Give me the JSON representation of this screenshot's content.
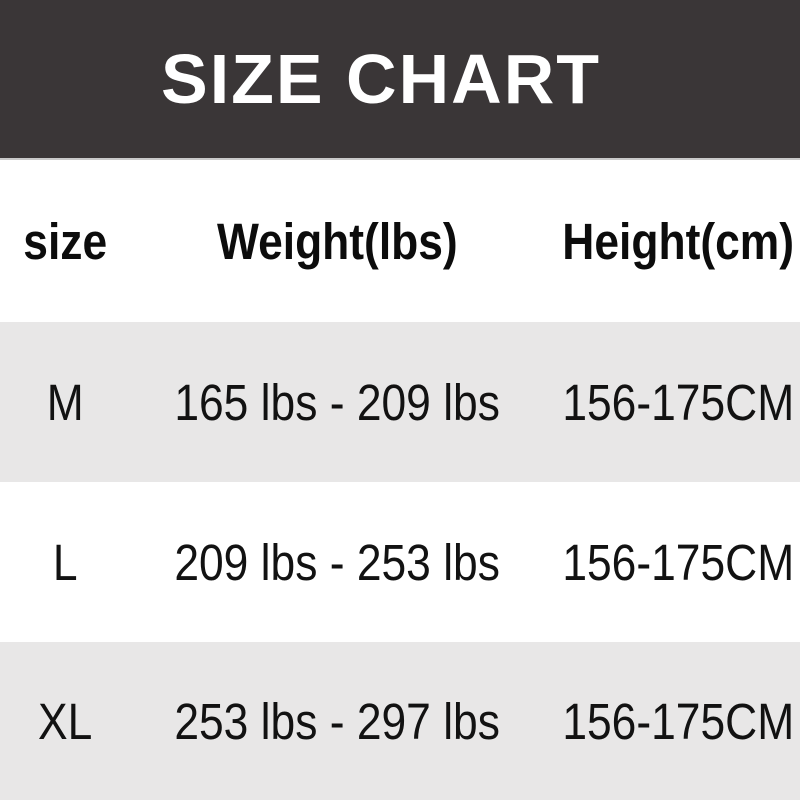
{
  "title": "SIZE CHART",
  "chart_data": {
    "type": "table",
    "title": "SIZE CHART",
    "columns": [
      "size",
      "Weight(lbs)",
      "Height(cm)"
    ],
    "rows": [
      [
        "M",
        "165 lbs - 209 lbs",
        "156-175CM"
      ],
      [
        "L",
        "209 lbs - 253 lbs",
        "156-175CM"
      ],
      [
        "XL",
        "253 lbs - 297 lbs",
        "156-175CM"
      ]
    ],
    "layout": {
      "row_striping": "rows M and XL shaded gray, L white",
      "header_position": "top banner + bold column header row"
    }
  },
  "colors": {
    "banner_bg": "#3a3637",
    "banner_text": "#ffffff",
    "stripe_bg": "#e8e7e7",
    "divider": "#c9c9c9",
    "text": "#121212"
  }
}
